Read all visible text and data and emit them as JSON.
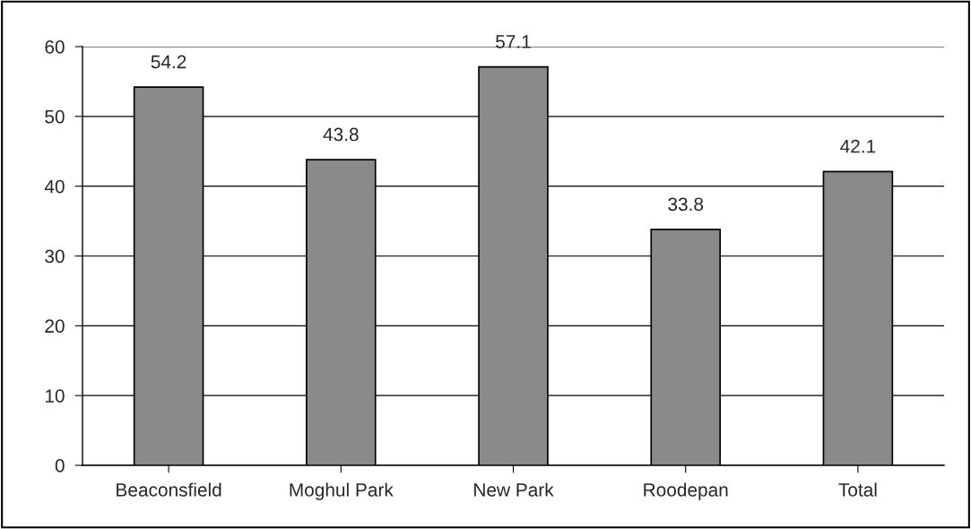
{
  "chart_data": {
    "type": "bar",
    "categories": [
      "Beaconsfield",
      "Moghul Park",
      "New Park",
      "Roodepan",
      "Total"
    ],
    "values": [
      54.2,
      43.8,
      57.1,
      33.8,
      42.1
    ],
    "color": "#8a8a8a",
    "ylim": [
      0,
      60
    ],
    "yticks": [
      0,
      10,
      20,
      30,
      40,
      50,
      60
    ],
    "grid": "y",
    "data_labels": true
  }
}
